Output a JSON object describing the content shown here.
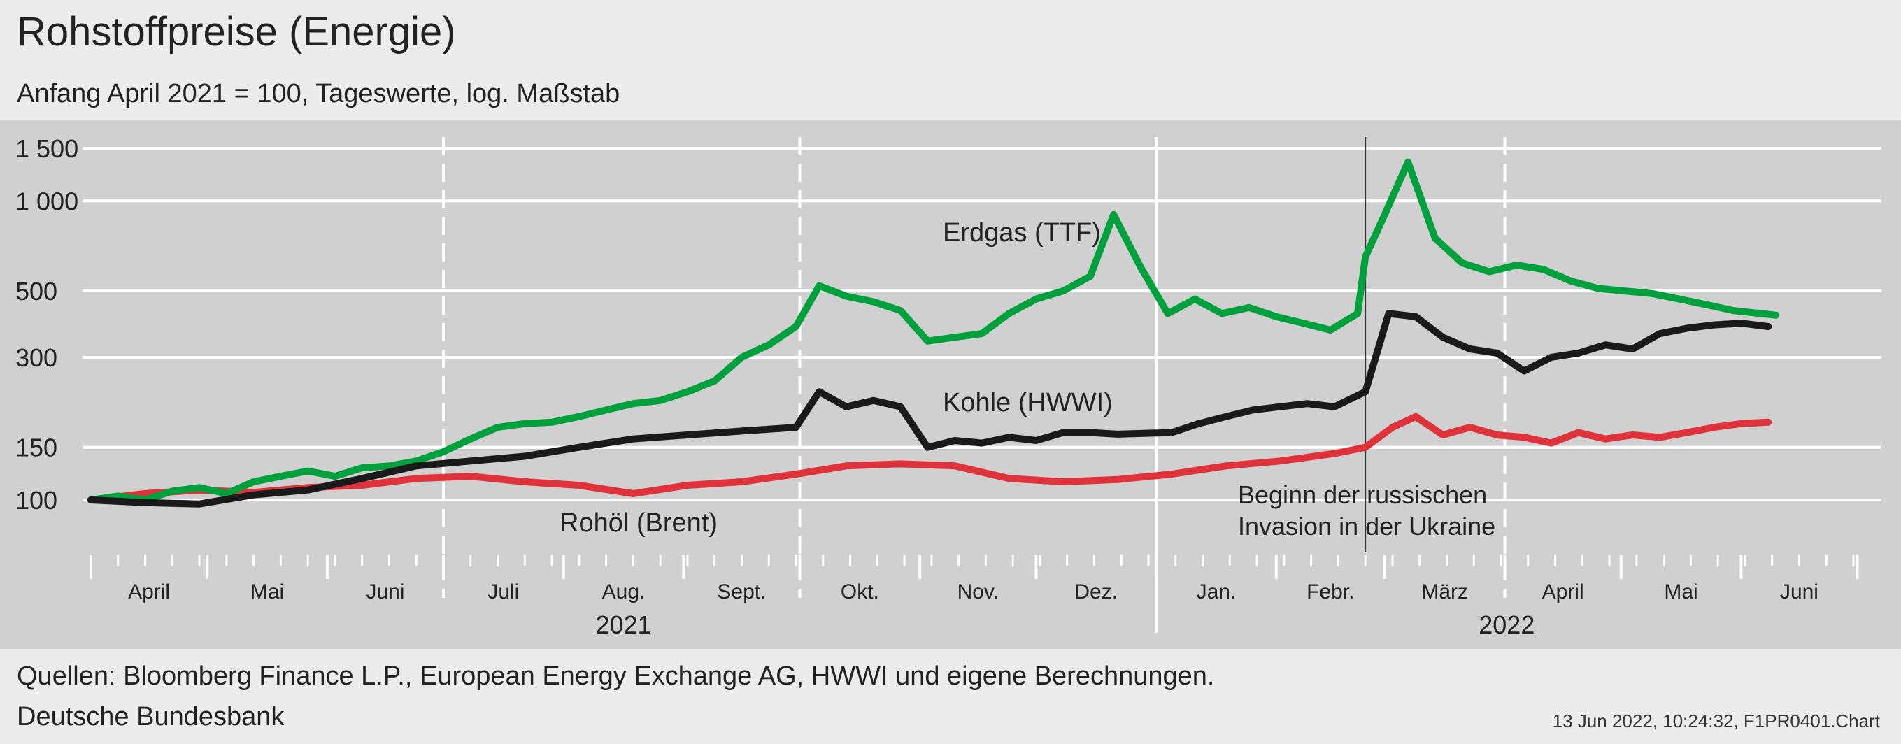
{
  "header": {
    "title": "Rohstoffpreise (Energie)",
    "subtitle": "Anfang April 2021 = 100, Tageswerte, log. Maßstab"
  },
  "footer": {
    "sources": "Quellen: Bloomberg Finance L.P., European Energy Exchange AG, HWWI und eigene Berechnungen.",
    "publisher": "Deutsche Bundesbank",
    "stamp": "13 Jun 2022, 10:24:32, F1PR0401.Chart"
  },
  "chart_data": {
    "type": "line",
    "title": "Rohstoffpreise (Energie)",
    "subtitle": "Anfang April 2021 = 100, Tageswerte, log. Maßstab",
    "y_scale": "log",
    "y_ticks": [
      100,
      150,
      300,
      500,
      1000,
      1500
    ],
    "y_tick_labels": [
      "100",
      "150",
      "300",
      "500",
      "1 000",
      "1 500"
    ],
    "ylim": [
      70,
      1600
    ],
    "grid": true,
    "months": [
      "April",
      "Mai",
      "Juni",
      "Juli",
      "Aug.",
      "Sept.",
      "Okt.",
      "Nov.",
      "Dez.",
      "Jan.",
      "Febr.",
      "März",
      "April",
      "Mai",
      "Juni"
    ],
    "years": [
      "2021",
      "2022"
    ],
    "xlim": [
      "2021-04-01",
      "2022-06-30"
    ],
    "annotation": {
      "date": "2022-02-24",
      "lines": [
        "Beginn der russischen",
        "Invasion in der Ukraine"
      ]
    },
    "colors": {
      "Erdgas (TTF)": "#00a03c",
      "Kohle (HWWI)": "#1a1a1a",
      "Rohöl (Brent)": "#e0323a",
      "grid": "#ffffff",
      "plot_background": "#d0d0d0"
    },
    "series": [
      {
        "name": "Erdgas (TTF)",
        "data": [
          [
            "2021-04-01",
            100
          ],
          [
            "2021-04-08",
            103
          ],
          [
            "2021-04-15",
            100
          ],
          [
            "2021-04-22",
            107
          ],
          [
            "2021-04-29",
            110
          ],
          [
            "2021-05-06",
            105
          ],
          [
            "2021-05-13",
            115
          ],
          [
            "2021-05-20",
            120
          ],
          [
            "2021-05-27",
            125
          ],
          [
            "2021-06-03",
            120
          ],
          [
            "2021-06-10",
            128
          ],
          [
            "2021-06-17",
            130
          ],
          [
            "2021-06-24",
            135
          ],
          [
            "2021-07-01",
            145
          ],
          [
            "2021-07-08",
            160
          ],
          [
            "2021-07-15",
            175
          ],
          [
            "2021-07-22",
            180
          ],
          [
            "2021-07-29",
            182
          ],
          [
            "2021-08-05",
            190
          ],
          [
            "2021-08-12",
            200
          ],
          [
            "2021-08-19",
            210
          ],
          [
            "2021-08-26",
            215
          ],
          [
            "2021-09-02",
            230
          ],
          [
            "2021-09-09",
            250
          ],
          [
            "2021-09-16",
            300
          ],
          [
            "2021-09-23",
            330
          ],
          [
            "2021-09-30",
            380
          ],
          [
            "2021-10-06",
            520
          ],
          [
            "2021-10-13",
            480
          ],
          [
            "2021-10-20",
            460
          ],
          [
            "2021-10-27",
            430
          ],
          [
            "2021-11-03",
            340
          ],
          [
            "2021-11-10",
            350
          ],
          [
            "2021-11-17",
            360
          ],
          [
            "2021-11-24",
            420
          ],
          [
            "2021-12-01",
            470
          ],
          [
            "2021-12-08",
            500
          ],
          [
            "2021-12-15",
            560
          ],
          [
            "2021-12-21",
            900
          ],
          [
            "2021-12-28",
            600
          ],
          [
            "2022-01-04",
            420
          ],
          [
            "2022-01-11",
            470
          ],
          [
            "2022-01-18",
            420
          ],
          [
            "2022-01-25",
            440
          ],
          [
            "2022-02-01",
            410
          ],
          [
            "2022-02-08",
            390
          ],
          [
            "2022-02-15",
            370
          ],
          [
            "2022-02-22",
            420
          ],
          [
            "2022-02-24",
            650
          ],
          [
            "2022-03-01",
            900
          ],
          [
            "2022-03-07",
            1350
          ],
          [
            "2022-03-14",
            750
          ],
          [
            "2022-03-21",
            620
          ],
          [
            "2022-03-28",
            580
          ],
          [
            "2022-04-04",
            610
          ],
          [
            "2022-04-11",
            590
          ],
          [
            "2022-04-18",
            540
          ],
          [
            "2022-04-25",
            510
          ],
          [
            "2022-05-02",
            500
          ],
          [
            "2022-05-09",
            490
          ],
          [
            "2022-05-16",
            470
          ],
          [
            "2022-05-23",
            450
          ],
          [
            "2022-05-30",
            430
          ],
          [
            "2022-06-06",
            420
          ],
          [
            "2022-06-10",
            415
          ]
        ]
      },
      {
        "name": "Kohle (HWWI)",
        "data": [
          [
            "2021-04-01",
            100
          ],
          [
            "2021-04-15",
            98
          ],
          [
            "2021-04-29",
            97
          ],
          [
            "2021-05-13",
            104
          ],
          [
            "2021-05-27",
            108
          ],
          [
            "2021-06-10",
            118
          ],
          [
            "2021-06-24",
            130
          ],
          [
            "2021-07-08",
            135
          ],
          [
            "2021-07-22",
            140
          ],
          [
            "2021-08-05",
            150
          ],
          [
            "2021-08-19",
            160
          ],
          [
            "2021-09-02",
            165
          ],
          [
            "2021-09-16",
            170
          ],
          [
            "2021-09-30",
            175
          ],
          [
            "2021-10-06",
            230
          ],
          [
            "2021-10-13",
            205
          ],
          [
            "2021-10-20",
            215
          ],
          [
            "2021-10-27",
            205
          ],
          [
            "2021-11-03",
            150
          ],
          [
            "2021-11-10",
            158
          ],
          [
            "2021-11-17",
            155
          ],
          [
            "2021-11-24",
            162
          ],
          [
            "2021-12-01",
            158
          ],
          [
            "2021-12-08",
            168
          ],
          [
            "2021-12-15",
            168
          ],
          [
            "2021-12-22",
            166
          ],
          [
            "2022-01-05",
            168
          ],
          [
            "2022-01-12",
            180
          ],
          [
            "2022-01-19",
            190
          ],
          [
            "2022-01-26",
            200
          ],
          [
            "2022-02-02",
            205
          ],
          [
            "2022-02-09",
            210
          ],
          [
            "2022-02-16",
            205
          ],
          [
            "2022-02-24",
            230
          ],
          [
            "2022-03-02",
            420
          ],
          [
            "2022-03-09",
            410
          ],
          [
            "2022-03-16",
            350
          ],
          [
            "2022-03-23",
            320
          ],
          [
            "2022-03-30",
            310
          ],
          [
            "2022-04-06",
            270
          ],
          [
            "2022-04-13",
            300
          ],
          [
            "2022-04-20",
            310
          ],
          [
            "2022-04-27",
            330
          ],
          [
            "2022-05-04",
            320
          ],
          [
            "2022-05-11",
            360
          ],
          [
            "2022-05-18",
            375
          ],
          [
            "2022-05-25",
            385
          ],
          [
            "2022-06-01",
            390
          ],
          [
            "2022-06-08",
            380
          ]
        ]
      },
      {
        "name": "Rohöl (Brent)",
        "data": [
          [
            "2021-04-01",
            100
          ],
          [
            "2021-04-15",
            105
          ],
          [
            "2021-04-29",
            108
          ],
          [
            "2021-05-13",
            106
          ],
          [
            "2021-05-27",
            110
          ],
          [
            "2021-06-10",
            112
          ],
          [
            "2021-06-24",
            118
          ],
          [
            "2021-07-08",
            120
          ],
          [
            "2021-07-22",
            115
          ],
          [
            "2021-08-05",
            112
          ],
          [
            "2021-08-19",
            105
          ],
          [
            "2021-09-02",
            112
          ],
          [
            "2021-09-16",
            115
          ],
          [
            "2021-09-30",
            122
          ],
          [
            "2021-10-13",
            130
          ],
          [
            "2021-10-27",
            132
          ],
          [
            "2021-11-10",
            130
          ],
          [
            "2021-11-24",
            118
          ],
          [
            "2021-12-08",
            115
          ],
          [
            "2021-12-22",
            117
          ],
          [
            "2022-01-05",
            122
          ],
          [
            "2022-01-19",
            130
          ],
          [
            "2022-02-02",
            135
          ],
          [
            "2022-02-16",
            143
          ],
          [
            "2022-02-24",
            150
          ],
          [
            "2022-03-03",
            175
          ],
          [
            "2022-03-09",
            190
          ],
          [
            "2022-03-16",
            165
          ],
          [
            "2022-03-23",
            175
          ],
          [
            "2022-03-30",
            165
          ],
          [
            "2022-04-06",
            162
          ],
          [
            "2022-04-13",
            155
          ],
          [
            "2022-04-20",
            168
          ],
          [
            "2022-04-27",
            160
          ],
          [
            "2022-05-04",
            165
          ],
          [
            "2022-05-11",
            162
          ],
          [
            "2022-05-18",
            168
          ],
          [
            "2022-05-25",
            175
          ],
          [
            "2022-06-01",
            180
          ],
          [
            "2022-06-08",
            182
          ]
        ]
      }
    ]
  }
}
